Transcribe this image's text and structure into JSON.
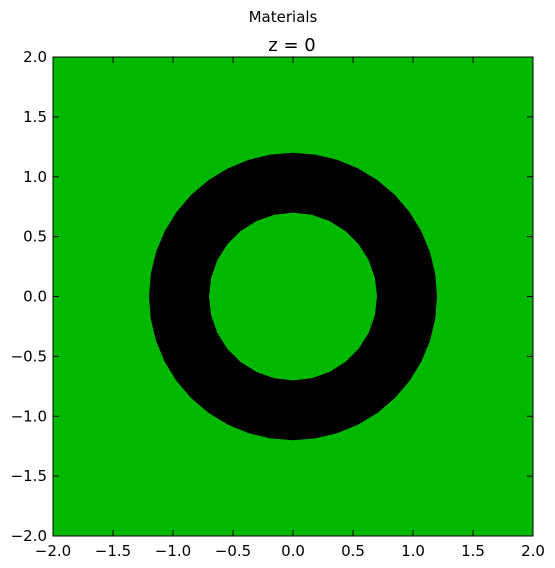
{
  "figure": {
    "suptitle": "Materials"
  },
  "chart_data": {
    "type": "heatmap",
    "title": "z = 0",
    "xlabel": "",
    "ylabel": "",
    "xlim": [
      -2.0,
      2.0
    ],
    "ylim": [
      -2.0,
      2.0
    ],
    "xticks": [
      -2.0,
      -1.5,
      -1.0,
      -0.5,
      0.0,
      0.5,
      1.0,
      1.5,
      2.0
    ],
    "yticks": [
      -2.0,
      -1.5,
      -1.0,
      -0.5,
      0.0,
      0.5,
      1.0,
      1.5,
      2.0
    ],
    "xtick_labels": [
      "−2.0",
      "−1.5",
      "−1.0",
      "−0.5",
      "0.0",
      "0.5",
      "1.0",
      "1.5",
      "2.0"
    ],
    "ytick_labels": [
      "−2.0",
      "−1.5",
      "−1.0",
      "−0.5",
      "0.0",
      "0.5",
      "1.0",
      "1.5",
      "2.0"
    ],
    "grid": false,
    "regions": [
      {
        "material": "background",
        "shape": "square",
        "color": "#00b800",
        "xmin": -2.0,
        "xmax": 2.0,
        "ymin": -2.0,
        "ymax": 2.0
      },
      {
        "material": "ring",
        "shape": "annulus",
        "color": "#000000",
        "center": [
          0.0,
          0.0
        ],
        "inner_radius": 0.7,
        "outer_radius": 1.2
      }
    ]
  }
}
